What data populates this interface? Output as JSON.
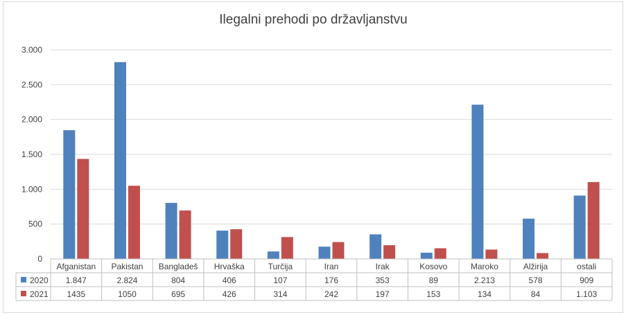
{
  "chart_data": {
    "type": "bar",
    "title": "Ilegalni prehodi po državljanstvu",
    "categories": [
      "Afganistan",
      "Pakistan",
      "Bangladeš",
      "Hrvaška",
      "Turčija",
      "Iran",
      "Irak",
      "Kosovo",
      "Maroko",
      "Alžirija",
      "ostali"
    ],
    "series": [
      {
        "name": "2020",
        "color": "#4f81bd",
        "values": [
          1847,
          2824,
          804,
          406,
          107,
          176,
          353,
          89,
          2213,
          578,
          909
        ],
        "labels": [
          "1.847",
          "2.824",
          "804",
          "406",
          "107",
          "176",
          "353",
          "89",
          "2.213",
          "578",
          "909"
        ]
      },
      {
        "name": "2021",
        "color": "#c0504d",
        "values": [
          1435,
          1050,
          695,
          426,
          314,
          242,
          197,
          153,
          134,
          84,
          1103
        ],
        "labels": [
          "1435",
          "1050",
          "695",
          "426",
          "314",
          "242",
          "197",
          "153",
          "134",
          "84",
          "1.103"
        ]
      }
    ],
    "ylim": [
      0,
      3000
    ],
    "yticks": [
      0,
      500,
      1000,
      1500,
      2000,
      2500,
      3000
    ],
    "ytick_labels": [
      "0",
      "500",
      "1.000",
      "1.500",
      "2.000",
      "2.500",
      "3.000"
    ],
    "grid": true,
    "legend": "data-table"
  }
}
